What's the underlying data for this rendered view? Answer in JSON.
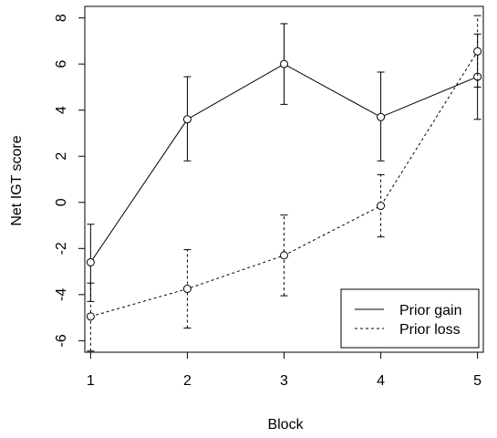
{
  "chart_data": {
    "type": "line",
    "title": "",
    "xlabel": "Block",
    "ylabel": "Net IGT score",
    "x": [
      1,
      2,
      3,
      4,
      5
    ],
    "xlim": [
      0.94,
      5.06
    ],
    "ylim": [
      -6.5,
      8.5
    ],
    "x_ticks": [
      "1",
      "2",
      "3",
      "4",
      "5"
    ],
    "y_ticks": [
      "-6",
      "-4",
      "-2",
      "0",
      "2",
      "4",
      "6",
      "8"
    ],
    "grid": false,
    "legend_position": "bottom-right",
    "series": [
      {
        "name": "Prior gain",
        "line_style": "solid",
        "marker": "open-circle",
        "values": [
          -2.6,
          3.6,
          6.0,
          3.7,
          5.45
        ],
        "error_lower": [
          -4.3,
          1.8,
          4.25,
          1.8,
          3.6
        ],
        "error_upper": [
          -0.95,
          5.45,
          7.75,
          5.65,
          7.3
        ]
      },
      {
        "name": "Prior loss",
        "line_style": "dashed",
        "marker": "open-circle",
        "values": [
          -4.95,
          -3.75,
          -2.3,
          -0.15,
          6.55
        ],
        "error_lower": [
          -6.45,
          -5.45,
          -4.05,
          -1.5,
          5.0
        ],
        "error_upper": [
          -3.5,
          -2.05,
          -0.55,
          1.2,
          8.1
        ]
      }
    ]
  }
}
